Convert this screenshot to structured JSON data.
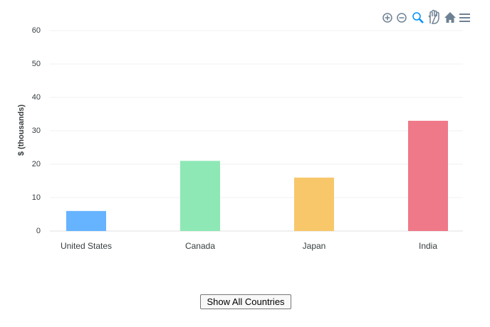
{
  "chart_data": {
    "type": "bar",
    "y_label": "$ (thousands)",
    "categories": [
      "United States",
      "Canada",
      "Japan",
      "India"
    ],
    "values": [
      6,
      21,
      16,
      33
    ],
    "colors": [
      "#66b3ff",
      "#8ee8b5",
      "#f7c76a",
      "#ef7889"
    ],
    "ylim": [
      0,
      60
    ],
    "yticks": [
      0,
      10,
      20,
      30,
      40,
      50,
      60
    ],
    "grid": true
  },
  "controls": {
    "button": "Show All Countries"
  }
}
